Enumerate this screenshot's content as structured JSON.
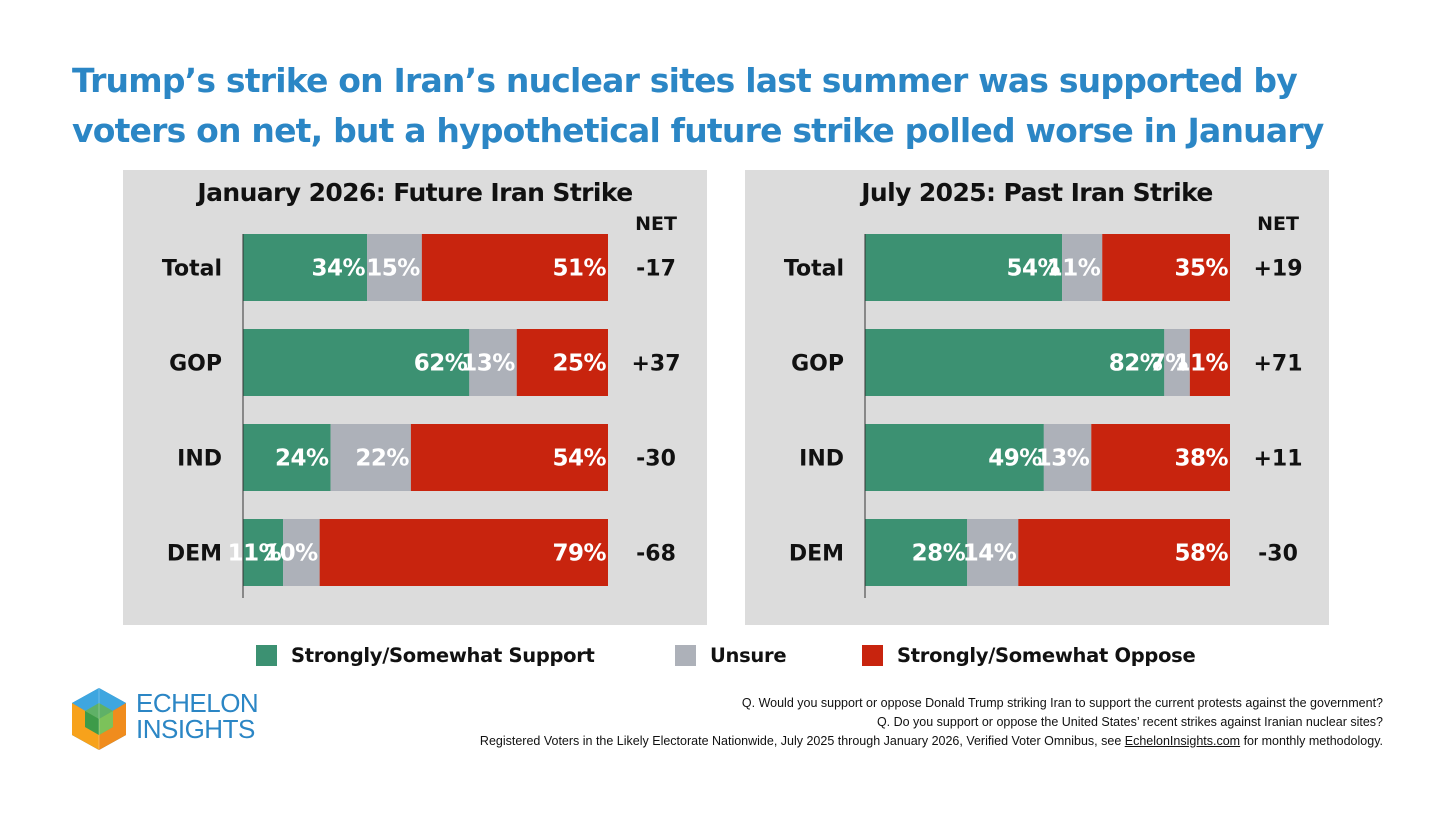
{
  "headline": {
    "line1": "Trump’s strike on Iran’s nuclear sites last summer was supported by",
    "line2": "voters on net, but a hypothetical future strike polled worse in January"
  },
  "colors": {
    "support": "#3c9172",
    "unsure": "#adb1b9",
    "oppose": "#c8240e",
    "title_blue": "#2b86c5",
    "panel_bg": "#dcdcdc"
  },
  "chart_data": [
    {
      "type": "bar",
      "stacked": true,
      "orientation": "horizontal",
      "title": "January 2026: Future Iran Strike",
      "net_header": "NET",
      "categories": [
        "Total",
        "GOP",
        "IND",
        "DEM"
      ],
      "series": [
        {
          "name": "Strongly/Somewhat Support",
          "values": [
            34,
            62,
            24,
            11
          ]
        },
        {
          "name": "Unsure",
          "values": [
            15,
            13,
            22,
            10
          ]
        },
        {
          "name": "Strongly/Somewhat Oppose",
          "values": [
            51,
            25,
            54,
            79
          ]
        }
      ],
      "net": [
        "-17",
        "+37",
        "-30",
        "-68"
      ],
      "xlim": [
        0,
        100
      ]
    },
    {
      "type": "bar",
      "stacked": true,
      "orientation": "horizontal",
      "title": "July 2025: Past Iran Strike",
      "net_header": "NET",
      "categories": [
        "Total",
        "GOP",
        "IND",
        "DEM"
      ],
      "series": [
        {
          "name": "Strongly/Somewhat Support",
          "values": [
            54,
            82,
            49,
            28
          ]
        },
        {
          "name": "Unsure",
          "values": [
            11,
            7,
            13,
            14
          ]
        },
        {
          "name": "Strongly/Somewhat Oppose",
          "values": [
            35,
            11,
            38,
            58
          ]
        }
      ],
      "net": [
        "+19",
        "+71",
        "+11",
        "-30"
      ],
      "xlim": [
        0,
        100
      ]
    }
  ],
  "legend": {
    "support": "Strongly/Somewhat Support",
    "unsure": "Unsure",
    "oppose": "Strongly/Somewhat Oppose"
  },
  "brand": {
    "line1": "ECHELON",
    "line2": "INSIGHTS"
  },
  "notes": {
    "q1": "Q. Would you support or oppose Donald Trump striking Iran to support the current protests against the government?",
    "q2": "Q. Do you support or oppose the United States’ recent strikes against Iranian nuclear sites?",
    "source_pre": "Registered Voters in the Likely Electorate Nationwide, July 2025 through January 2026, Verified Voter Omnibus, see ",
    "source_link": "EchelonInsights.com",
    "source_post": " for monthly methodology."
  }
}
